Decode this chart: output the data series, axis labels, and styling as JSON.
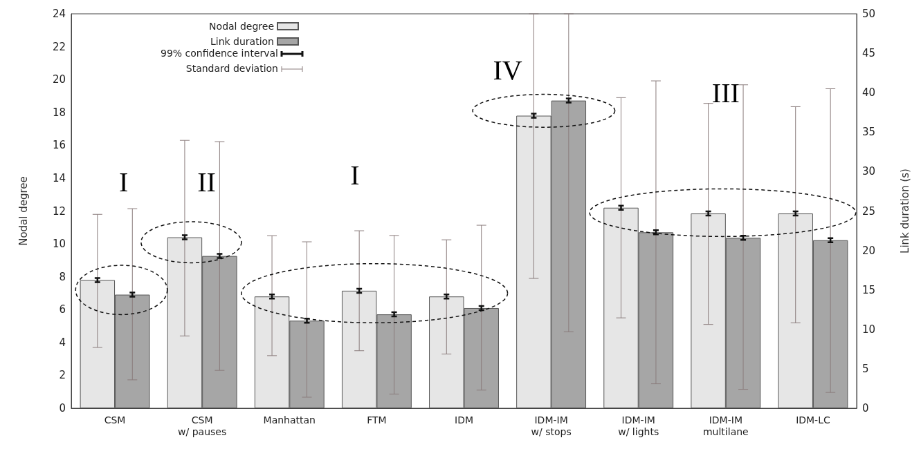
{
  "chart_data": {
    "type": "bar",
    "ylabel": "Nodal degree",
    "y2label": "Link duration (s)",
    "categories": [
      "CSM",
      "CSM\nw/ pauses",
      "Manhattan",
      "FTM",
      "IDM",
      "IDM-IM\nw/ stops",
      "IDM-IM\nw/ lights",
      "IDM-IM\nmultilane",
      "IDM-LC"
    ],
    "series": [
      {
        "name": "Nodal degree",
        "color": "#e6e6e6",
        "values": [
          7.8,
          10.4,
          6.8,
          7.15,
          6.8,
          17.8,
          12.2,
          11.85,
          11.85
        ],
        "errors": [
          [
            3.7,
            11.8
          ],
          [
            4.4,
            16.3
          ],
          [
            3.2,
            10.5
          ],
          [
            3.5,
            10.8
          ],
          [
            3.3,
            10.25
          ],
          [
            7.9,
            24
          ],
          [
            5.5,
            18.9
          ],
          [
            5.1,
            18.55
          ],
          [
            5.2,
            18.35
          ]
        ]
      },
      {
        "name": "Link duration",
        "color": "#a6a6a6",
        "axis": "y2",
        "values": [
          14.4,
          19.3,
          11.1,
          11.9,
          12.7,
          39.0,
          22.3,
          21.6,
          21.3
        ],
        "errors": [
          [
            3.6,
            25.3
          ],
          [
            4.8,
            33.8
          ],
          [
            1.4,
            21.1
          ],
          [
            1.8,
            21.9
          ],
          [
            2.3,
            23.2
          ],
          [
            9.7,
            50
          ],
          [
            3.1,
            41.5
          ],
          [
            2.4,
            41.0
          ],
          [
            2.0,
            40.5
          ]
        ]
      }
    ],
    "ylim": [
      0,
      24
    ],
    "yticks": [
      0,
      2,
      4,
      6,
      8,
      10,
      12,
      14,
      16,
      18,
      20,
      22,
      24
    ],
    "y2lim": [
      0,
      50
    ],
    "y2ticks": [
      0,
      5,
      10,
      15,
      20,
      25,
      30,
      35,
      40,
      45,
      50
    ],
    "grid": false,
    "legend": "top left",
    "annotations": [
      "I",
      "II",
      "I",
      "IV",
      "III",
      "99% confidence interval",
      "Standard deviation"
    ]
  }
}
